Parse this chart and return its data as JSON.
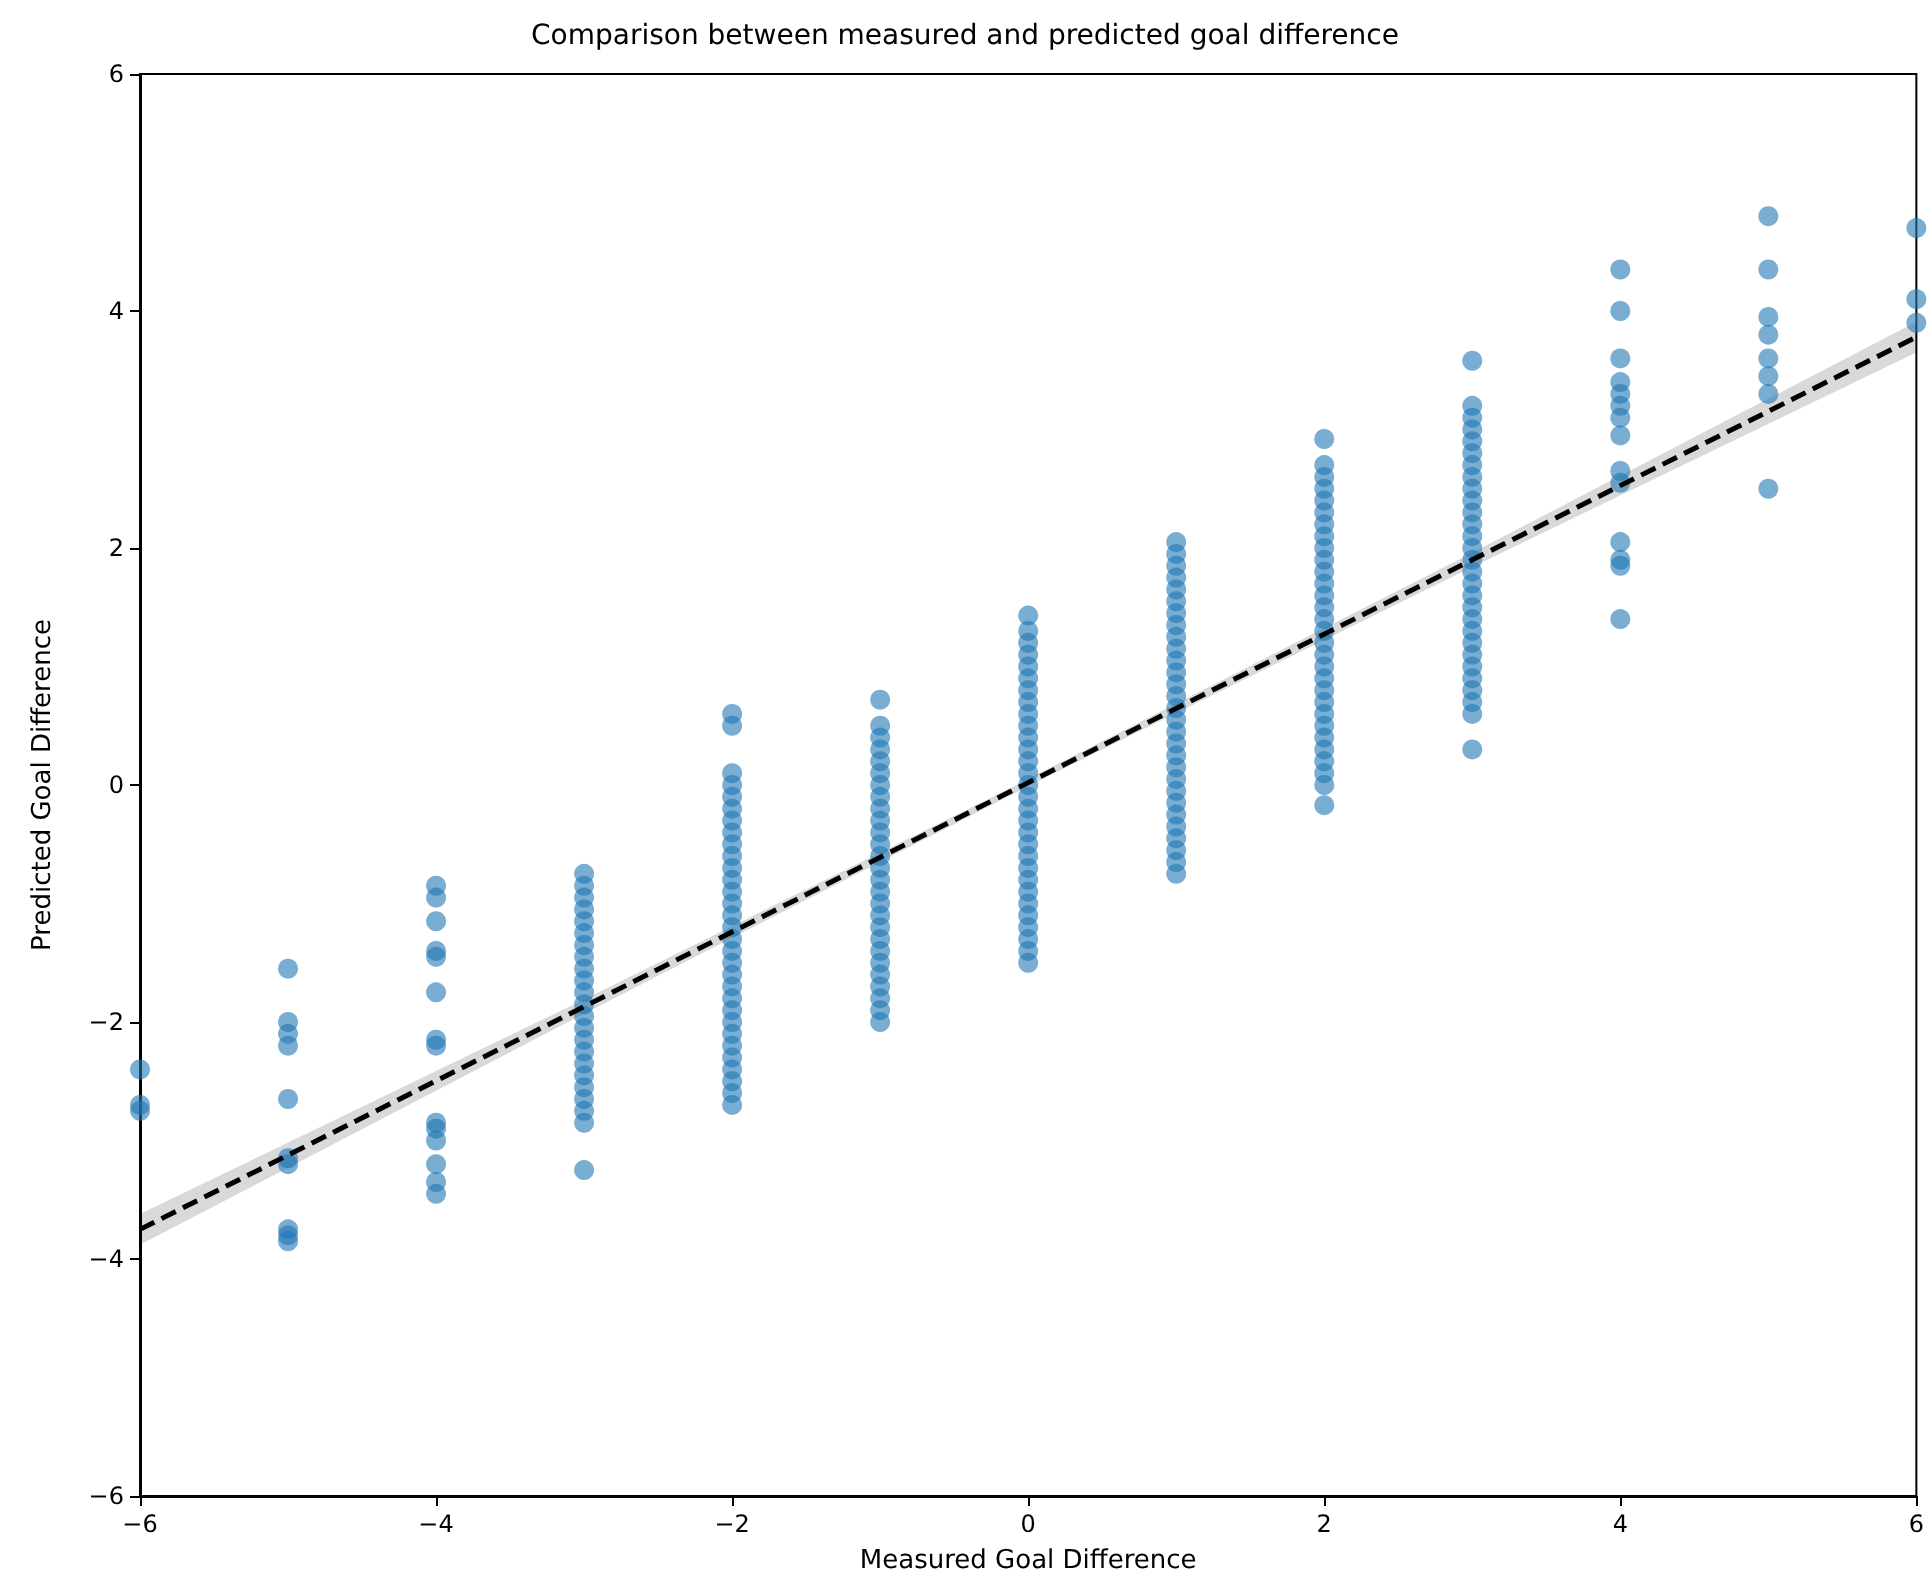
{
  "chart_data": {
    "type": "scatter",
    "title": "Comparison between measured and predicted goal difference",
    "xlabel": "Measured Goal Difference",
    "ylabel": "Predicted Goal Difference",
    "xlim": [
      -6,
      6
    ],
    "ylim": [
      -6,
      6
    ],
    "xticks": [
      {
        "value": -6,
        "label": "−6"
      },
      {
        "value": -4,
        "label": "−4"
      },
      {
        "value": -2,
        "label": "−2"
      },
      0,
      2,
      4,
      6
    ],
    "yticks": [
      {
        "value": -6,
        "label": "−6"
      },
      {
        "value": -4,
        "label": "−4"
      },
      {
        "value": -2,
        "label": "−2"
      },
      0,
      2,
      4,
      6
    ],
    "grid": false,
    "marker": "circle",
    "series": [
      {
        "color": "#1f77b4",
        "x": [
          -6,
          -6,
          -6,
          -5,
          -5,
          -5,
          -5,
          -5,
          -5,
          -5,
          -5,
          -5,
          -5,
          -4,
          -4,
          -4,
          -4,
          -4,
          -4,
          -4,
          -4,
          -4,
          -4,
          -4,
          -4,
          -4,
          -4,
          -3,
          -3,
          -3,
          -3,
          -3,
          -3,
          -3,
          -3,
          -3,
          -3,
          -3,
          -3,
          -3,
          -3,
          -3,
          -3,
          -3,
          -3,
          -3,
          -3,
          -3,
          -3,
          -3,
          -2,
          -2,
          -2,
          -2,
          -2,
          -2,
          -2,
          -2,
          -2,
          -2,
          -2,
          -2,
          -2,
          -2,
          -2,
          -2,
          -2,
          -2,
          -2,
          -2,
          -2,
          -2,
          -2,
          -2,
          -2,
          -2,
          -2,
          -2,
          -2,
          -2,
          -2,
          -1,
          -1,
          -1,
          -1,
          -1,
          -1,
          -1,
          -1,
          -1,
          -1,
          -1,
          -1,
          -1,
          -1,
          -1,
          -1,
          -1,
          -1,
          -1,
          -1,
          -1,
          -1,
          -1,
          -1,
          -1,
          -1,
          -1,
          0,
          0,
          0,
          0,
          0,
          0,
          0,
          0,
          0,
          0,
          0,
          0,
          0,
          0,
          0,
          0,
          0,
          0,
          0,
          0,
          0,
          0,
          0,
          0,
          0,
          0,
          0,
          0,
          0,
          0,
          1,
          1,
          1,
          1,
          1,
          1,
          1,
          1,
          1,
          1,
          1,
          1,
          1,
          1,
          1,
          1,
          1,
          1,
          1,
          1,
          1,
          1,
          1,
          1,
          1,
          1,
          1,
          1,
          1,
          2,
          2,
          2,
          2,
          2,
          2,
          2,
          2,
          2,
          2,
          2,
          2,
          2,
          2,
          2,
          2,
          2,
          2,
          2,
          2,
          2,
          2,
          2,
          2,
          2,
          2,
          2,
          2,
          2,
          2,
          3,
          3,
          3,
          3,
          3,
          3,
          3,
          3,
          3,
          3,
          3,
          3,
          3,
          3,
          3,
          3,
          3,
          3,
          3,
          3,
          3,
          3,
          3,
          3,
          3,
          3,
          3,
          3,
          3,
          4,
          4,
          4,
          4,
          4,
          4,
          4,
          4,
          4,
          4,
          4,
          4,
          4,
          4,
          5,
          5,
          5,
          5,
          5,
          5,
          5,
          5,
          6,
          6,
          6
        ],
        "values": [
          -2.4,
          -2.7,
          -2.75,
          -1.55,
          -2.0,
          -2.1,
          -2.2,
          -2.65,
          -3.15,
          -3.2,
          -3.75,
          -3.8,
          -3.85,
          -0.85,
          -0.95,
          -1.15,
          -1.4,
          -1.45,
          -1.75,
          -2.15,
          -2.2,
          -2.85,
          -2.9,
          -3.0,
          -3.2,
          -3.35,
          -3.45,
          -0.75,
          -0.85,
          -0.95,
          -1.05,
          -1.15,
          -1.25,
          -1.35,
          -1.45,
          -1.55,
          -1.65,
          -1.75,
          -1.85,
          -1.95,
          -2.05,
          -2.15,
          -2.25,
          -2.35,
          -2.45,
          -2.55,
          -2.65,
          -2.75,
          -2.85,
          -3.25,
          0.6,
          0.5,
          0.1,
          0.0,
          -0.1,
          -0.2,
          -0.3,
          -0.4,
          -0.5,
          -0.6,
          -0.7,
          -0.8,
          -0.9,
          -1.0,
          -1.1,
          -1.2,
          -1.3,
          -1.4,
          -1.5,
          -1.6,
          -1.7,
          -1.8,
          -1.9,
          -2.0,
          -2.1,
          -2.2,
          -2.3,
          -2.4,
          -2.5,
          -2.6,
          -2.7,
          0.72,
          0.5,
          0.4,
          0.3,
          0.2,
          0.1,
          0.0,
          -0.1,
          -0.2,
          -0.3,
          -0.4,
          -0.5,
          -0.6,
          -0.7,
          -0.8,
          -0.9,
          -1.0,
          -1.1,
          -1.2,
          -1.3,
          -1.4,
          -1.5,
          -1.6,
          -1.7,
          -1.8,
          -1.9,
          -2.0,
          1.43,
          1.3,
          1.2,
          1.1,
          1.0,
          0.9,
          0.8,
          0.7,
          0.6,
          0.5,
          0.4,
          0.3,
          0.2,
          0.1,
          0.0,
          -0.1,
          -0.2,
          -0.3,
          -0.4,
          -0.5,
          -0.6,
          -0.7,
          -0.8,
          -0.9,
          -1.0,
          -1.1,
          -1.2,
          -1.3,
          -1.4,
          -1.5,
          2.05,
          1.95,
          1.85,
          1.75,
          1.65,
          1.55,
          1.45,
          1.35,
          1.25,
          1.15,
          1.05,
          0.95,
          0.85,
          0.75,
          0.65,
          0.55,
          0.45,
          0.35,
          0.25,
          0.15,
          0.05,
          -0.05,
          -0.15,
          -0.25,
          -0.35,
          -0.45,
          -0.55,
          -0.65,
          -0.75,
          2.92,
          2.7,
          2.6,
          2.5,
          2.4,
          2.3,
          2.2,
          2.1,
          2.0,
          1.9,
          1.8,
          1.7,
          1.6,
          1.5,
          1.4,
          1.3,
          1.2,
          1.1,
          1.0,
          0.9,
          0.8,
          0.7,
          0.6,
          0.5,
          0.4,
          0.3,
          0.2,
          0.1,
          0.0,
          -0.17,
          3.58,
          3.2,
          3.1,
          3.0,
          2.9,
          2.8,
          2.7,
          2.6,
          2.5,
          2.4,
          2.3,
          2.2,
          2.1,
          2.0,
          1.9,
          1.8,
          1.7,
          1.6,
          1.5,
          1.4,
          1.3,
          1.2,
          1.1,
          1.0,
          0.9,
          0.8,
          0.7,
          0.6,
          0.3,
          4.35,
          4.0,
          3.6,
          3.4,
          3.3,
          3.2,
          3.1,
          2.95,
          2.65,
          2.55,
          2.05,
          1.9,
          1.85,
          1.4,
          4.8,
          4.35,
          3.95,
          3.8,
          3.6,
          3.45,
          3.3,
          2.5,
          4.7,
          4.1,
          3.9
        ]
      },
      {
        "type": "line",
        "color": "#000000",
        "line_style": "dashed",
        "marker": "none",
        "x": [
          -6,
          -3,
          0,
          3,
          6
        ],
        "values": [
          -3.75,
          -1.87,
          0.02,
          1.9,
          3.78
        ],
        "lower": [
          -3.88,
          -1.93,
          -0.01,
          1.84,
          3.65
        ],
        "upper": [
          -3.62,
          -1.81,
          0.05,
          1.96,
          3.91
        ]
      }
    ]
  }
}
